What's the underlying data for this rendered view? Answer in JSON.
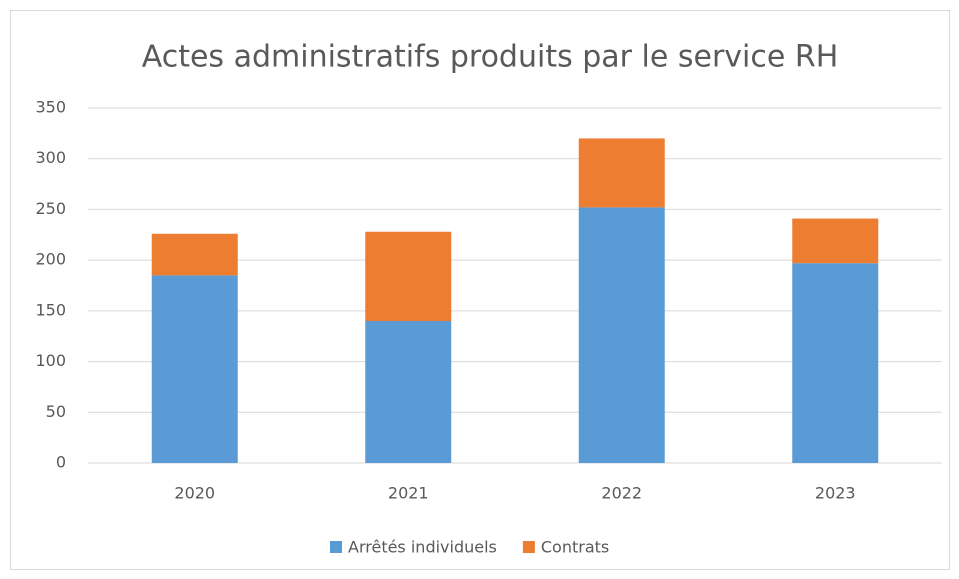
{
  "chart_data": {
    "type": "stacked_bar",
    "title": "Actes administratifs produits par le service RH",
    "categories": [
      "2020",
      "2021",
      "2022",
      "2023"
    ],
    "series": [
      {
        "name": "Arrêtés individuels",
        "color": "#5b9bd5",
        "values": [
          185,
          140,
          252,
          197
        ]
      },
      {
        "name": "Contrats",
        "color": "#ed7d31",
        "values": [
          41,
          88,
          68,
          44
        ]
      }
    ],
    "ylim": [
      0,
      350
    ],
    "yticks": [
      0,
      50,
      100,
      150,
      200,
      250,
      300,
      350
    ],
    "grid": true,
    "legend": "bottom"
  }
}
